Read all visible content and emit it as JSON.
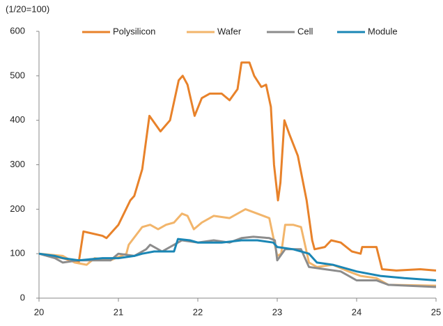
{
  "chart_data": {
    "type": "line",
    "y_unit_label": "(1/20=100)",
    "xlim": [
      20,
      25
    ],
    "xticks": [
      20,
      21,
      22,
      23,
      24,
      25
    ],
    "ylim": [
      0,
      600
    ],
    "yticks": [
      0,
      100,
      200,
      300,
      400,
      500,
      600
    ],
    "grid": false,
    "legend": "top",
    "series": [
      {
        "name": "Polysilicon",
        "color": "#e8822a",
        "x": [
          20,
          20.3,
          20.5,
          20.56,
          20.8,
          20.85,
          21.0,
          21.15,
          21.2,
          21.3,
          21.39,
          21.53,
          21.65,
          21.76,
          21.81,
          21.87,
          21.96,
          22.05,
          22.15,
          22.3,
          22.4,
          22.5,
          22.55,
          22.65,
          22.71,
          22.8,
          22.86,
          22.92,
          22.96,
          23.01,
          23.04,
          23.09,
          23.15,
          23.26,
          23.37,
          23.44,
          23.47,
          23.6,
          23.68,
          23.8,
          23.94,
          24.05,
          24.07,
          24.25,
          24.32,
          24.5,
          24.8,
          25
        ],
        "values": [
          100,
          90,
          80,
          150,
          140,
          135,
          165,
          220,
          230,
          290,
          410,
          375,
          400,
          490,
          500,
          480,
          410,
          450,
          460,
          460,
          445,
          470,
          530,
          530,
          500,
          475,
          480,
          430,
          300,
          220,
          260,
          400,
          370,
          320,
          220,
          130,
          110,
          115,
          130,
          125,
          105,
          100,
          115,
          115,
          65,
          62,
          65,
          62
        ]
      },
      {
        "name": "Wafer",
        "color": "#f2b56b",
        "x": [
          20,
          20.3,
          20.45,
          20.6,
          20.7,
          20.9,
          21.1,
          21.13,
          21.3,
          21.4,
          21.5,
          21.6,
          21.7,
          21.8,
          21.87,
          21.95,
          22.05,
          22.2,
          22.4,
          22.55,
          22.6,
          22.75,
          22.9,
          23.0,
          23.05,
          23.1,
          23.2,
          23.3,
          23.4,
          23.5,
          23.7,
          23.9,
          24.05,
          24.25,
          24.4,
          25
        ],
        "values": [
          100,
          95,
          80,
          75,
          90,
          85,
          100,
          120,
          160,
          165,
          155,
          165,
          170,
          190,
          185,
          155,
          170,
          185,
          180,
          195,
          200,
          190,
          180,
          95,
          100,
          165,
          165,
          160,
          80,
          70,
          75,
          60,
          50,
          45,
          30,
          28
        ]
      },
      {
        "name": "Cell",
        "color": "#8c8c8c",
        "x": [
          20,
          20.2,
          20.3,
          20.5,
          20.9,
          21.0,
          21.2,
          21.35,
          21.4,
          21.55,
          21.7,
          21.8,
          22.0,
          22.2,
          22.4,
          22.55,
          22.7,
          22.9,
          22.97,
          23.0,
          23.1,
          23.3,
          23.4,
          23.6,
          23.8,
          24.0,
          24.25,
          24.4,
          25
        ],
        "values": [
          100,
          90,
          80,
          85,
          85,
          100,
          95,
          110,
          120,
          105,
          120,
          130,
          125,
          130,
          125,
          135,
          138,
          135,
          130,
          85,
          110,
          110,
          70,
          65,
          60,
          40,
          40,
          30,
          25
        ]
      },
      {
        "name": "Module",
        "color": "#1a86b5",
        "x": [
          20,
          20.2,
          20.3,
          20.5,
          20.8,
          21.0,
          21.2,
          21.3,
          21.45,
          21.7,
          21.75,
          21.9,
          22.0,
          22.3,
          22.55,
          22.75,
          22.95,
          23.0,
          23.2,
          23.4,
          23.5,
          23.7,
          24.0,
          24.3,
          24.6,
          25
        ],
        "values": [
          100,
          95,
          90,
          85,
          90,
          90,
          95,
          100,
          105,
          105,
          133,
          130,
          125,
          125,
          130,
          130,
          125,
          115,
          110,
          100,
          80,
          75,
          60,
          50,
          45,
          40
        ]
      }
    ]
  }
}
